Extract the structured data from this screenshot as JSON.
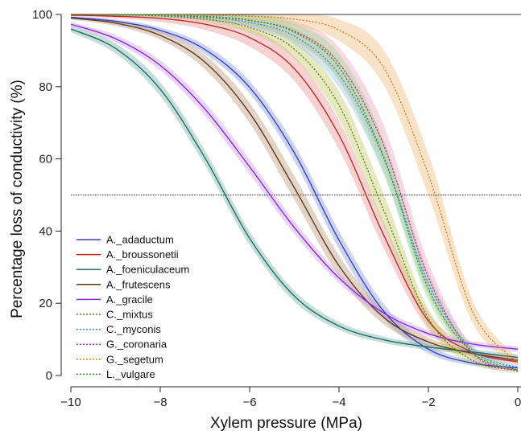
{
  "chart_data": {
    "type": "line",
    "title": "",
    "xlabel": "Xylem pressure (MPa)",
    "ylabel": "Percentage loss of conductivity (%)",
    "xlim": [
      -10,
      0
    ],
    "ylim": [
      0,
      100
    ],
    "xticks": [
      -10,
      -8,
      -6,
      -4,
      -2,
      0
    ],
    "yticks": [
      0,
      20,
      40,
      60,
      80,
      100
    ],
    "xtick_labels": [
      "−10",
      "−8",
      "−6",
      "−4",
      "−2",
      "0"
    ],
    "ytick_labels": [
      "0",
      "20",
      "40",
      "60",
      "80",
      "100"
    ],
    "reference_lines": [
      {
        "axis": "y",
        "value": 50,
        "style": "dotted"
      },
      {
        "axis": "y",
        "value": 100,
        "style": "solid"
      }
    ],
    "legend_position": "bottom-left",
    "x_sample": [
      -10,
      -9,
      -8,
      -7,
      -6,
      -5,
      -4,
      -3,
      -2,
      -1,
      0
    ],
    "series": [
      {
        "name": "A._adaductum",
        "color": "#3b3fc4",
        "band_color": "#8ea2dd",
        "line_style": "solid",
        "values": [
          99.2,
          98.1,
          95.6,
          90.3,
          79.8,
          61.7,
          37.5,
          17.8,
          7.3,
          3.4,
          2.1
        ],
        "band_halfwidth": [
          0.3,
          0.5,
          0.8,
          1.2,
          1.7,
          2.3,
          2.5,
          2.0,
          1.2,
          0.7,
          0.5
        ]
      },
      {
        "name": "A._broussonetii",
        "color": "#c42a2a",
        "band_color": "#ec9c9c",
        "line_style": "solid",
        "values": [
          99.8,
          99.5,
          98.9,
          97.3,
          93.6,
          85.0,
          66.6,
          38.9,
          15.1,
          6.4,
          3.8
        ],
        "band_halfwidth": [
          0.3,
          0.6,
          1.0,
          1.6,
          2.5,
          3.4,
          4.0,
          3.6,
          2.3,
          1.2,
          0.8
        ]
      },
      {
        "name": "A._foeniculaceum",
        "color": "#1f6e68",
        "band_color": "#80b8ae",
        "line_style": "solid",
        "values": [
          96.0,
          90.6,
          79.3,
          60.3,
          38.0,
          22.0,
          13.7,
          9.9,
          7.9,
          6.5,
          5.0
        ],
        "band_halfwidth": [
          0.9,
          1.4,
          1.9,
          2.1,
          1.9,
          1.5,
          1.1,
          0.9,
          0.8,
          0.8,
          0.8
        ]
      },
      {
        "name": "A._frutescens",
        "color": "#5e3a1e",
        "band_color": "#bfa282",
        "line_style": "solid",
        "values": [
          99.0,
          97.6,
          94.2,
          86.8,
          72.7,
          52.0,
          30.4,
          16.1,
          9.3,
          6.1,
          4.2
        ],
        "band_halfwidth": [
          0.4,
          0.8,
          1.2,
          2.0,
          2.8,
          3.3,
          2.8,
          1.9,
          1.2,
          0.8,
          0.6
        ]
      },
      {
        "name": "A._gracile",
        "color": "#8a2bd4",
        "band_color": "#cfa2ef",
        "line_style": "solid",
        "values": [
          97.3,
          93.3,
          85.9,
          73.8,
          57.8,
          41.0,
          27.0,
          17.3,
          11.6,
          8.7,
          7.3
        ],
        "band_halfwidth": [
          0.6,
          1.0,
          1.4,
          1.8,
          2.0,
          1.8,
          1.4,
          1.1,
          0.9,
          0.8,
          0.8
        ]
      },
      {
        "name": "C._mixtus",
        "color": "#6b7d10",
        "band_color": "#c3cf74",
        "line_style": "dotted",
        "values": [
          100.0,
          99.9,
          99.6,
          98.7,
          96.4,
          90.4,
          74.9,
          45.8,
          15.8,
          4.1,
          1.5
        ],
        "band_halfwidth": [
          0.2,
          0.3,
          0.5,
          0.9,
          1.5,
          2.5,
          3.8,
          4.4,
          2.6,
          1.0,
          0.4
        ]
      },
      {
        "name": "C._myconis",
        "color": "#2d8ee6",
        "band_color": "#9ec7f2",
        "line_style": "dotted",
        "values": [
          100.0,
          99.9,
          99.7,
          99.2,
          97.8,
          94.0,
          83.4,
          60.3,
          25.5,
          6.9,
          2.2
        ],
        "band_halfwidth": [
          0.2,
          0.3,
          0.5,
          0.8,
          1.3,
          2.2,
          3.6,
          4.5,
          3.3,
          1.3,
          0.5
        ]
      },
      {
        "name": "G._coronaria",
        "color": "#d3307e",
        "band_color": "#f0a8c6",
        "line_style": "dotted",
        "values": [
          100.0,
          99.9,
          99.8,
          99.4,
          98.4,
          95.4,
          86.5,
          63.8,
          27.2,
          6.0,
          1.2
        ],
        "band_halfwidth": [
          0.2,
          0.3,
          0.6,
          1.0,
          1.7,
          2.8,
          4.4,
          5.5,
          4.0,
          1.6,
          0.5
        ]
      },
      {
        "name": "G._segetum",
        "color": "#d98324",
        "band_color": "#f2c184",
        "line_style": "dotted",
        "values": [
          100.0,
          100.0,
          99.9,
          99.8,
          99.5,
          98.7,
          95.7,
          85.3,
          55.6,
          17.4,
          3.6
        ],
        "band_halfwidth": [
          0.2,
          0.3,
          0.4,
          0.6,
          1.0,
          1.8,
          3.0,
          4.8,
          5.8,
          3.1,
          1.0
        ]
      },
      {
        "name": "L._vulgare",
        "color": "#2f9c1e",
        "band_color": "#9fdb8d",
        "line_style": "dotted",
        "values": [
          100.0,
          99.9,
          99.8,
          99.5,
          98.4,
          95.1,
          85.4,
          60.6,
          24.0,
          6.2,
          1.5
        ],
        "band_halfwidth": [
          0.2,
          0.3,
          0.5,
          0.8,
          1.4,
          2.4,
          3.8,
          4.6,
          3.2,
          1.3,
          0.5
        ]
      }
    ]
  }
}
